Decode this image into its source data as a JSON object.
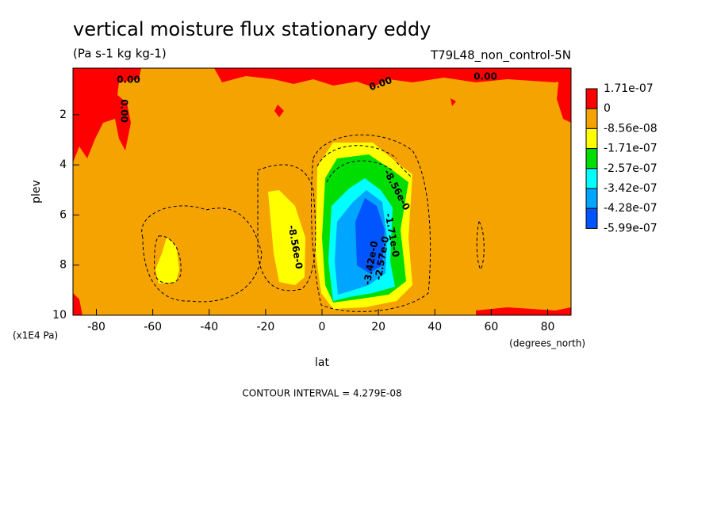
{
  "chart_data": {
    "type": "contour",
    "title": "vertical moisture flux stationary eddy",
    "subtitle": "(Pa s-1 kg kg-1)",
    "dataset": "T79L48_non_control-5N",
    "x_label": "lat",
    "x_units": "(degrees_north)",
    "y_label": "plev",
    "y_units": "(x1E4 Pa)",
    "footer": "CONTOUR INTERVAL = 4.279E-08",
    "xlim": [
      -88.3,
      88.3
    ],
    "xticks": [
      -80,
      -60,
      -40,
      -20,
      0,
      20,
      40,
      60,
      80
    ],
    "ylim": [
      10,
      0.14
    ],
    "yticks": [
      2,
      4,
      6,
      8,
      10
    ],
    "levels": [
      {
        "value": 1.71e-07,
        "label": "1.71e-07"
      },
      0,
      {
        "value": -8.56e-08,
        "label": "-8.56e-08"
      },
      {
        "value": -1.71e-07,
        "label": "-1.71e-07"
      },
      {
        "value": -2.57e-07,
        "label": "-2.57e-07"
      },
      {
        "value": -3.42e-07,
        "label": "-3.42e-07"
      },
      {
        "value": -4.28e-07,
        "label": "-4.28e-07"
      },
      {
        "value": -5.99e-07,
        "label": "-5.99e-07"
      }
    ],
    "colors": [
      "#ff0000",
      "#f5a300",
      "#ffff00",
      "#00dd00",
      "#00ffff",
      "#00a5ff",
      "#0055ff"
    ],
    "annotations": [
      "0.00",
      "0.00",
      "0.00",
      "0.00",
      "-8.56e-0",
      "-8.56e-0",
      "-1.71e-0",
      "-2.57e-0",
      "-3.42e-0"
    ]
  }
}
